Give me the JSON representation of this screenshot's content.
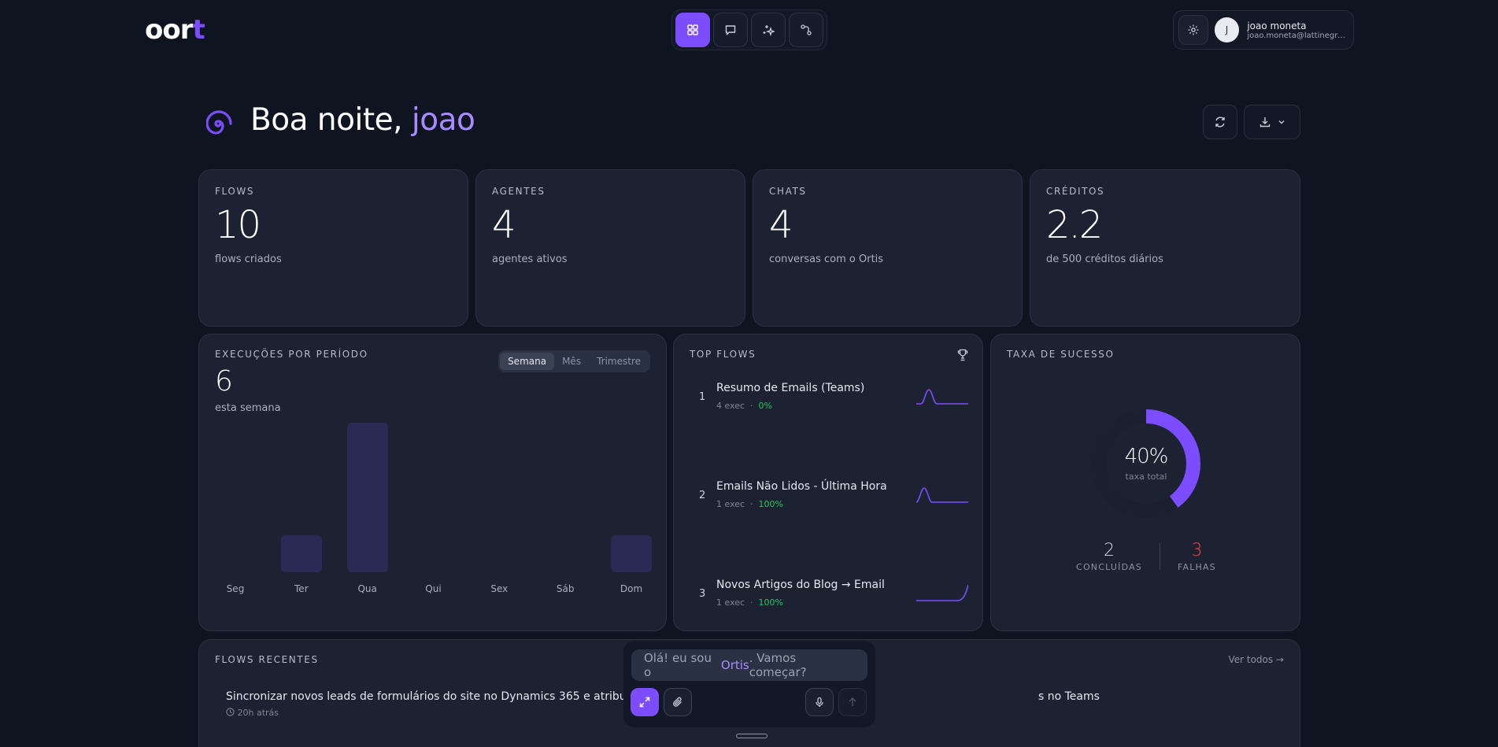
{
  "app": {
    "logo_main": "oor",
    "logo_accent": "t",
    "accent_color": "#7c4dff"
  },
  "topnav": {
    "items": [
      {
        "name": "dashboard-icon",
        "active": true
      },
      {
        "name": "chat-icon",
        "active": false
      },
      {
        "name": "sparkles-icon",
        "active": false
      },
      {
        "name": "flows-icon",
        "active": false
      }
    ]
  },
  "user": {
    "avatar_initial": "J",
    "name": "joao moneta",
    "email": "joao.moneta@lattinegrou..."
  },
  "greeting": {
    "prefix": "Boa noite, ",
    "name": "joao"
  },
  "stats": [
    {
      "label": "FLOWS",
      "value": "10",
      "sub": "flows criados"
    },
    {
      "label": "AGENTES",
      "value": "4",
      "sub": "agentes ativos"
    },
    {
      "label": "CHATS",
      "value": "4",
      "sub": "conversas com o Ortis"
    },
    {
      "label": "CRÉDITOS",
      "value": "2.2",
      "sub": "de 500 créditos diários"
    }
  ],
  "executions": {
    "title": "EXECUÇÕES POR PERÍODO",
    "tabs": [
      "Semana",
      "Mês",
      "Trimestre"
    ],
    "active_tab": "Semana",
    "total": "6",
    "total_sub": "esta semana",
    "chart_data": {
      "type": "bar",
      "categories": [
        "Seg",
        "Ter",
        "Qua",
        "Qui",
        "Sex",
        "Sáb",
        "Dom"
      ],
      "values": [
        0,
        1,
        4,
        0,
        0,
        0,
        1
      ],
      "ylim": [
        0,
        4
      ]
    }
  },
  "top_flows": {
    "title": "TOP FLOWS",
    "items": [
      {
        "rank": "1",
        "title": "Resumo de Emails (Teams)",
        "exec": "4 exec",
        "pct": "0%"
      },
      {
        "rank": "2",
        "title": "Emails Não Lidos - Última Hora",
        "exec": "1 exec",
        "pct": "100%"
      },
      {
        "rank": "3",
        "title": "Novos Artigos do Blog → Email",
        "exec": "1 exec",
        "pct": "100%"
      }
    ]
  },
  "success": {
    "title": "TAXA DE SUCESSO",
    "rate": "40%",
    "rate_value": 0.4,
    "rate_sub": "taxa total",
    "completed": "2",
    "completed_label": "CONCLUÍDAS",
    "failed": "3",
    "failed_label": "FALHAS"
  },
  "recent": {
    "title": "FLOWS RECENTES",
    "see_all": "Ver todos →",
    "items": [
      {
        "title": "Sincronizar novos leads de formulários do site no Dynamics 365 e atribuir a represe",
        "time": "20h atrás"
      },
      {
        "title": "s no Teams",
        "time": ""
      }
    ]
  },
  "composer": {
    "placeholder_prefix": "Olá! eu sou o ",
    "placeholder_name": "Ortis",
    "placeholder_suffix": ". Vamos começar?"
  }
}
